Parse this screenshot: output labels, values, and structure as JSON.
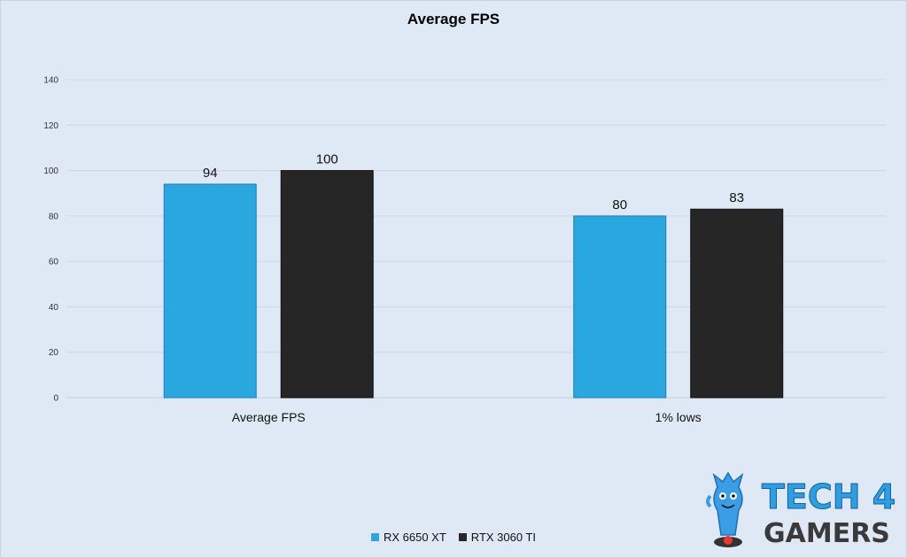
{
  "chart_data": {
    "type": "bar",
    "title": "Average FPS",
    "categories": [
      "Average FPS",
      "1% lows"
    ],
    "series": [
      {
        "name": "RX 6650 XT",
        "values": [
          94,
          80
        ],
        "color": "#29a8e0"
      },
      {
        "name": "RTX 3060 TI",
        "values": [
          100,
          83
        ],
        "color": "#262626"
      }
    ],
    "ylim": [
      0,
      140
    ],
    "yticks": [
      0,
      20,
      40,
      60,
      80,
      100,
      120,
      140
    ],
    "grid": true,
    "legend_position": "bottom",
    "data_labels": true
  },
  "logo": {
    "line1": "TECH 4",
    "line2": "GAMERS"
  }
}
